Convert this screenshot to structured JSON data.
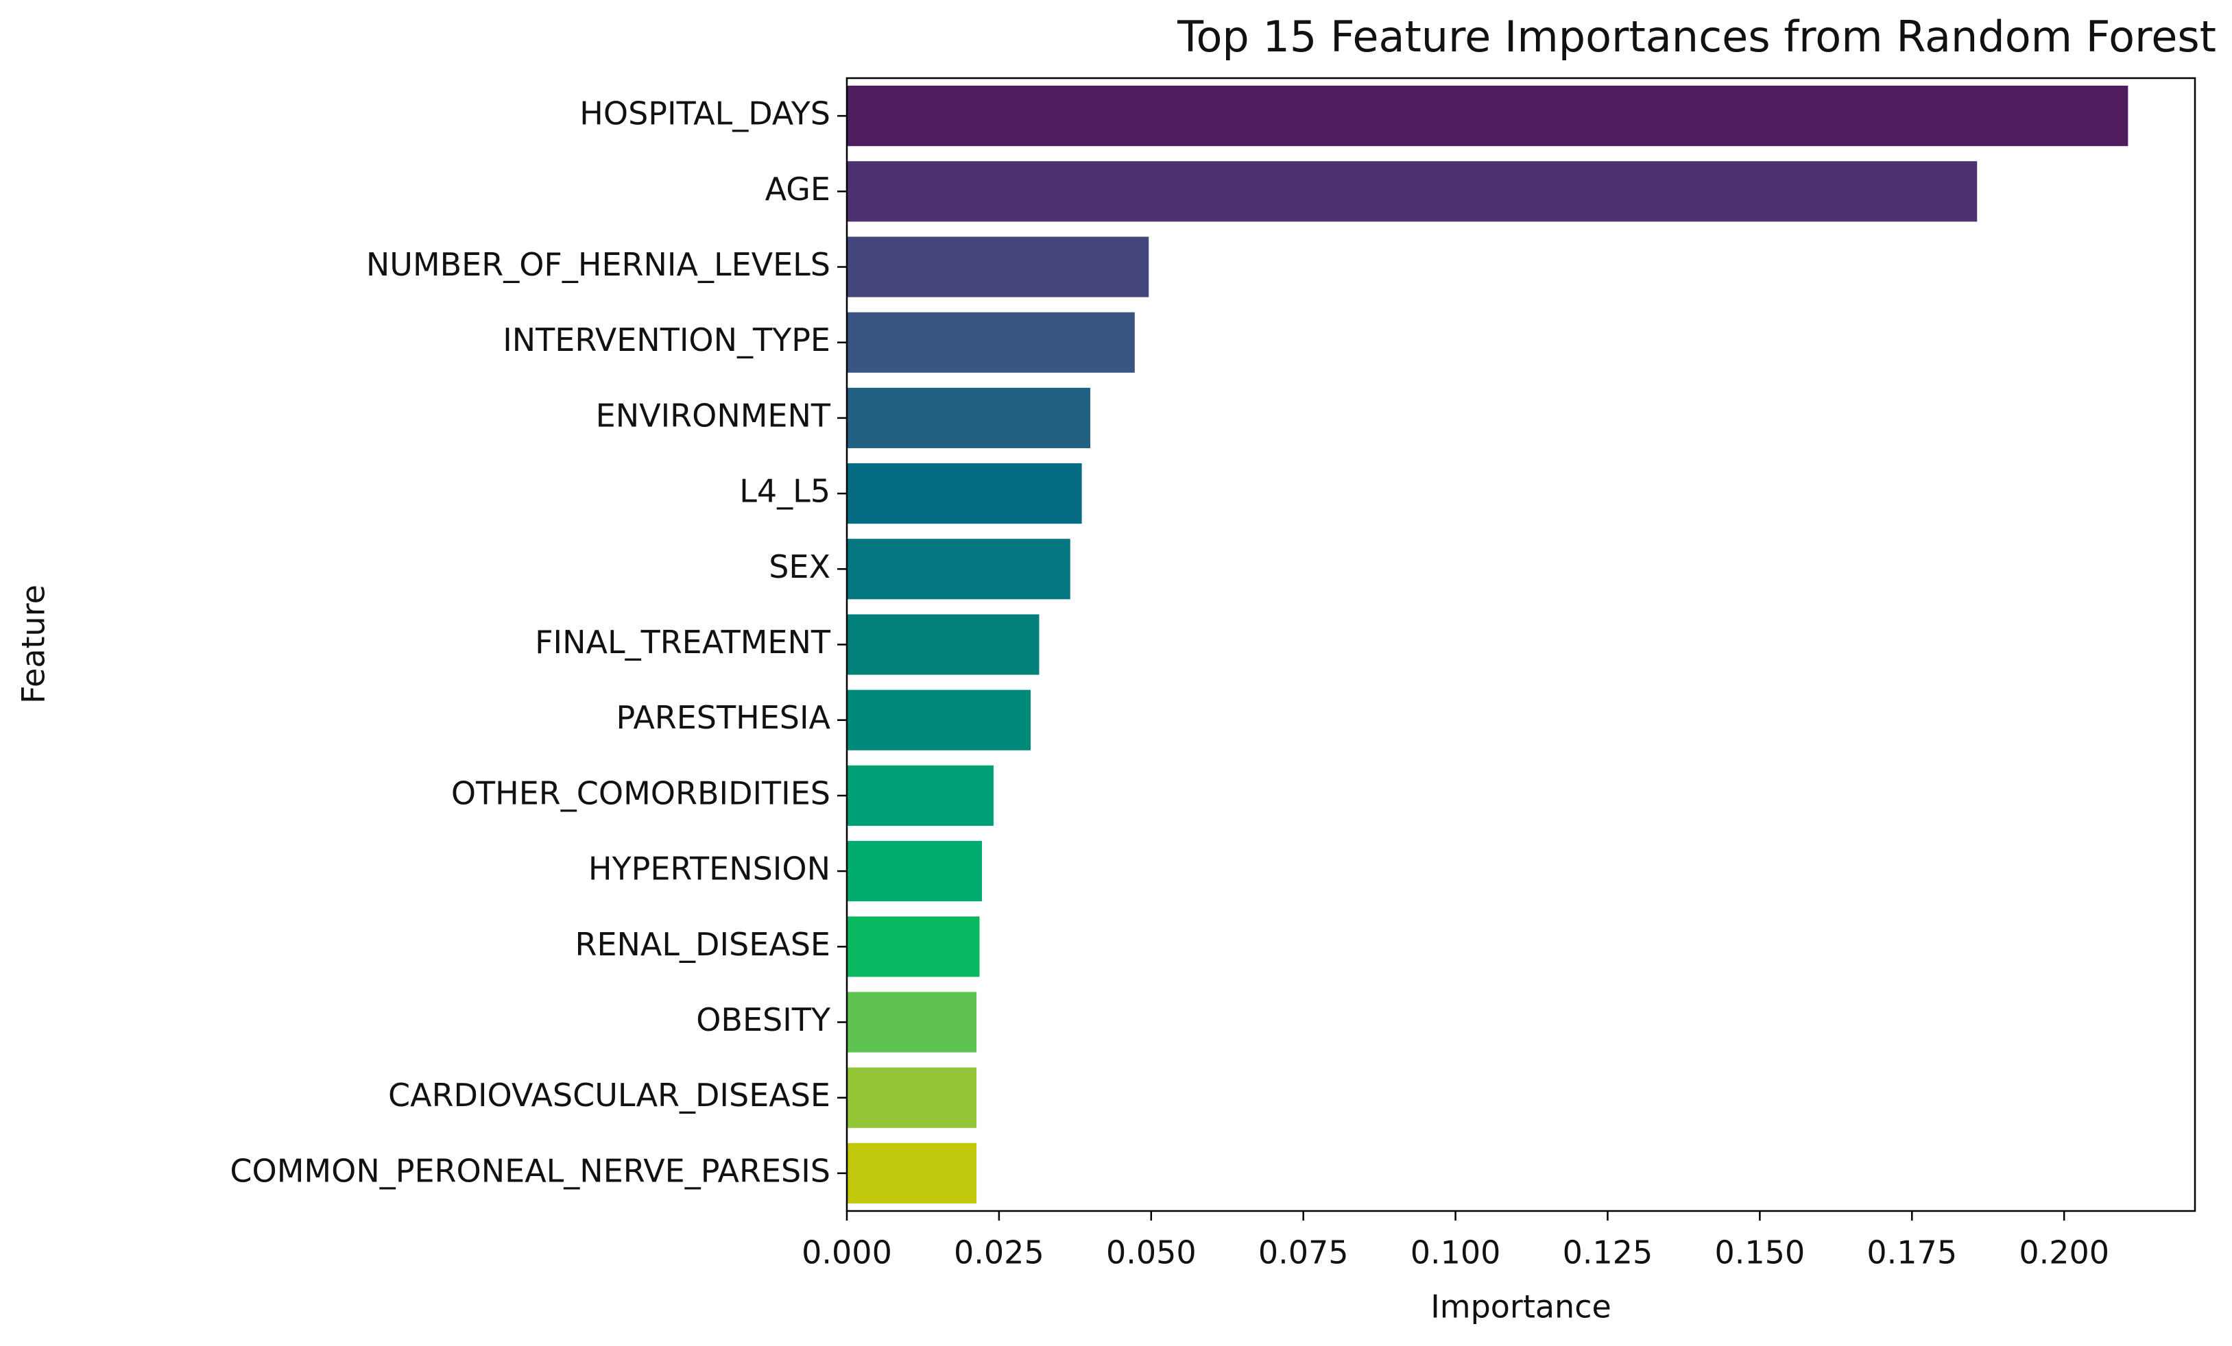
{
  "chart_data": {
    "type": "bar",
    "orientation": "horizontal",
    "title": "Top 15 Feature Importances from Random Forest",
    "xlabel": "Importance",
    "ylabel": "Feature",
    "categories": [
      "HOSPITAL_DAYS",
      "AGE",
      "NUMBER_OF_HERNIA_LEVELS",
      "INTERVENTION_TYPE",
      "ENVIRONMENT",
      "L4_L5",
      "SEX",
      "FINAL_TREATMENT",
      "PARESTHESIA",
      "OTHER_COMORBIDITIES",
      "HYPERTENSION",
      "RENAL_DISEASE",
      "OBESITY",
      "CARDIOVASCULAR_DISEASE",
      "COMMON_PERONEAL_NERVE_PARESIS"
    ],
    "values": [
      0.2105,
      0.1857,
      0.0496,
      0.0473,
      0.04,
      0.0386,
      0.0367,
      0.0316,
      0.0302,
      0.0241,
      0.0222,
      0.0218,
      0.0213,
      0.0213,
      0.0213
    ],
    "colors": [
      "#4f1c5e",
      "#4d3170",
      "#45457d",
      "#3b5582",
      "#236182",
      "#056c83",
      "#03767f",
      "#008079",
      "#008a7a",
      "#00a077",
      "#00ac6e",
      "#0bb862",
      "#5fc352",
      "#94c637",
      "#c1c80b"
    ],
    "xlim": [
      0,
      0.2215
    ],
    "xticks": [
      {
        "value": 0,
        "label": "0.000"
      },
      {
        "value": 0.025,
        "label": "0.025"
      },
      {
        "value": 0.05,
        "label": "0.050"
      },
      {
        "value": 0.075,
        "label": "0.075"
      },
      {
        "value": 0.1,
        "label": "0.100"
      },
      {
        "value": 0.125,
        "label": "0.125"
      },
      {
        "value": 0.15,
        "label": "0.150"
      },
      {
        "value": 0.175,
        "label": "0.175"
      },
      {
        "value": 0.2,
        "label": "0.200"
      }
    ]
  }
}
